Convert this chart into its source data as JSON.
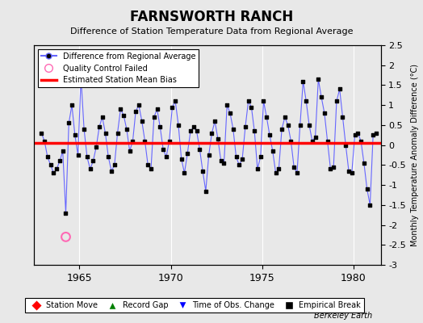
{
  "title": "FARNSWORTH RANCH",
  "subtitle": "Difference of Station Temperature Data from Regional Average",
  "ylabel_right": "Monthly Temperature Anomaly Difference (°C)",
  "xlabel": "",
  "ylim": [
    -3,
    2.5
  ],
  "yticks": [
    -3,
    -2.5,
    -2,
    -1.5,
    -1,
    -0.5,
    0,
    0.5,
    1,
    1.5,
    2,
    2.5
  ],
  "xlim": [
    1962.5,
    1981.5
  ],
  "xticks": [
    1965,
    1970,
    1975,
    1980
  ],
  "background_color": "#e8e8e8",
  "plot_bg_color": "#e8e8e8",
  "grid_color": "#ffffff",
  "bias_line_value": 0.05,
  "qc_failed_x": [
    1964.25
  ],
  "qc_failed_y": [
    -2.3
  ],
  "time_series": {
    "years": [
      1962.917,
      1963.083,
      1963.25,
      1963.417,
      1963.583,
      1963.75,
      1963.917,
      1964.083,
      1964.25,
      1964.417,
      1964.583,
      1964.75,
      1964.917,
      1965.083,
      1965.25,
      1965.417,
      1965.583,
      1965.75,
      1965.917,
      1966.083,
      1966.25,
      1966.417,
      1966.583,
      1966.75,
      1966.917,
      1967.083,
      1967.25,
      1967.417,
      1967.583,
      1967.75,
      1967.917,
      1968.083,
      1968.25,
      1968.417,
      1968.583,
      1968.75,
      1968.917,
      1969.083,
      1969.25,
      1969.417,
      1969.583,
      1969.75,
      1969.917,
      1970.083,
      1970.25,
      1970.417,
      1970.583,
      1970.75,
      1970.917,
      1971.083,
      1971.25,
      1971.417,
      1971.583,
      1971.75,
      1971.917,
      1972.083,
      1972.25,
      1972.417,
      1972.583,
      1972.75,
      1972.917,
      1973.083,
      1973.25,
      1973.417,
      1973.583,
      1973.75,
      1973.917,
      1974.083,
      1974.25,
      1974.417,
      1974.583,
      1974.75,
      1974.917,
      1975.083,
      1975.25,
      1975.417,
      1975.583,
      1975.75,
      1975.917,
      1976.083,
      1976.25,
      1976.417,
      1976.583,
      1976.75,
      1976.917,
      1977.083,
      1977.25,
      1977.417,
      1977.583,
      1977.75,
      1977.917,
      1978.083,
      1978.25,
      1978.417,
      1978.583,
      1978.75,
      1978.917,
      1979.083,
      1979.25,
      1979.417,
      1979.583,
      1979.75,
      1979.917,
      1980.083,
      1980.25,
      1980.417,
      1980.583,
      1980.75,
      1980.917,
      1981.083,
      1981.25
    ],
    "values": [
      0.3,
      0.1,
      -0.3,
      -0.5,
      -0.7,
      -0.6,
      -0.4,
      -0.15,
      -1.7,
      0.55,
      1.0,
      0.25,
      -0.25,
      1.7,
      0.4,
      -0.3,
      -0.6,
      -0.4,
      -0.05,
      0.45,
      0.7,
      0.3,
      -0.3,
      -0.65,
      -0.5,
      0.3,
      0.9,
      0.75,
      0.4,
      -0.15,
      0.1,
      0.85,
      1.0,
      0.6,
      0.1,
      -0.5,
      -0.6,
      0.7,
      0.9,
      0.45,
      -0.1,
      -0.3,
      0.1,
      0.95,
      1.1,
      0.5,
      -0.35,
      -0.7,
      -0.2,
      0.35,
      0.45,
      0.35,
      -0.1,
      -0.65,
      -1.15,
      -0.25,
      0.3,
      0.6,
      0.15,
      -0.4,
      -0.45,
      1.0,
      0.8,
      0.4,
      -0.3,
      -0.5,
      -0.35,
      0.45,
      1.1,
      0.95,
      0.35,
      -0.6,
      -0.3,
      1.1,
      0.7,
      0.25,
      -0.15,
      -0.7,
      -0.6,
      0.4,
      0.7,
      0.5,
      0.1,
      -0.55,
      -0.7,
      0.5,
      1.6,
      1.1,
      0.5,
      0.1,
      0.2,
      1.65,
      1.2,
      0.8,
      0.1,
      -0.6,
      -0.55,
      1.1,
      1.4,
      0.7,
      0.0,
      -0.65,
      -0.7,
      0.25,
      0.3,
      0.1,
      -0.45,
      -1.1,
      -1.5,
      0.25,
      0.3
    ]
  },
  "line_color": "#6666ff",
  "marker_color": "#000000",
  "bias_color": "#ff0000",
  "qc_color": "#ff69b4",
  "footer_text": "Berkeley Earth"
}
